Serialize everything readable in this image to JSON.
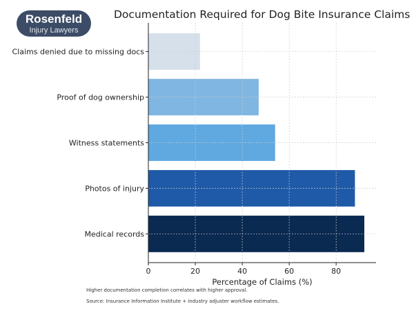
{
  "logo": {
    "line1": "Rosenfeld",
    "line2": "Injury Lawyers"
  },
  "chart_data": {
    "type": "bar",
    "orientation": "horizontal",
    "title": "Documentation Required for Dog Bite Insurance Claims",
    "xlabel": "Percentage of Claims (%)",
    "ylabel": "",
    "categories": [
      "Medical records",
      "Photos of injury",
      "Witness statements",
      "Proof of dog ownership",
      "Claims denied due to missing docs"
    ],
    "values": [
      92,
      88,
      54,
      47,
      22
    ],
    "colors": [
      "#0b2a52",
      "#1f5aa8",
      "#5fa8e0",
      "#7fb6e2",
      "#d5e0ea"
    ],
    "xlim": [
      0,
      97
    ],
    "xticks": [
      0,
      20,
      40,
      60,
      80
    ],
    "grid": true
  },
  "notes": [
    "Higher documentation completion correlates with higher approval.",
    "Source: Insurance Information Institute + industry adjuster workflow estimates."
  ]
}
